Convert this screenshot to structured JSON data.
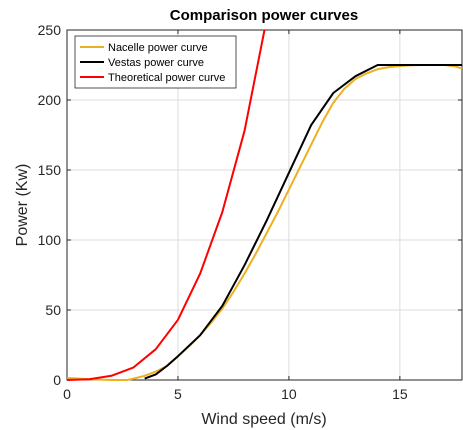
{
  "chart_data": {
    "type": "line",
    "title": "Comparison power curves",
    "xlabel": "Wind speed (m/s)",
    "ylabel": "Power (Kw)",
    "xlim": [
      0,
      17.8
    ],
    "ylim": [
      0,
      250
    ],
    "xticks": [
      0,
      5,
      10,
      15
    ],
    "yticks": [
      0,
      50,
      100,
      150,
      200,
      250
    ],
    "grid": true,
    "legend_position": "top-left",
    "series": [
      {
        "name": "Nacelle power curve",
        "color": "#EDB120",
        "points": [
          [
            0,
            1.5
          ],
          [
            1,
            0.5
          ],
          [
            2,
            0
          ],
          [
            2.7,
            0
          ],
          [
            3,
            1
          ],
          [
            3.5,
            3
          ],
          [
            4,
            6
          ],
          [
            4.5,
            10
          ],
          [
            5,
            17
          ],
          [
            5.5,
            24
          ],
          [
            6,
            32
          ],
          [
            6.5,
            41
          ],
          [
            7,
            51
          ],
          [
            7.5,
            63
          ],
          [
            8,
            76
          ],
          [
            8.5,
            90
          ],
          [
            9,
            105
          ],
          [
            9.5,
            120
          ],
          [
            10,
            136
          ],
          [
            10.5,
            152
          ],
          [
            11,
            168
          ],
          [
            11.5,
            184
          ],
          [
            12,
            198
          ],
          [
            12.5,
            208
          ],
          [
            13,
            215
          ],
          [
            13.5,
            219
          ],
          [
            14,
            222
          ],
          [
            14.5,
            223.5
          ],
          [
            15,
            224.3
          ],
          [
            15.5,
            224.8
          ],
          [
            16,
            225
          ],
          [
            16.5,
            225
          ],
          [
            17,
            225
          ],
          [
            17.5,
            224
          ],
          [
            17.8,
            222.5
          ]
        ]
      },
      {
        "name": "Vestas power curve",
        "color": "#000000",
        "points": [
          [
            3.5,
            1
          ],
          [
            4,
            4
          ],
          [
            4.5,
            10
          ],
          [
            5,
            17
          ],
          [
            6,
            32
          ],
          [
            7,
            53
          ],
          [
            8,
            82
          ],
          [
            9,
            114
          ],
          [
            10,
            148
          ],
          [
            11,
            182
          ],
          [
            12,
            205
          ],
          [
            13,
            217
          ],
          [
            14,
            225
          ],
          [
            15,
            225
          ],
          [
            16,
            225
          ],
          [
            17,
            225
          ],
          [
            17.8,
            225
          ]
        ]
      },
      {
        "name": "Theoretical power curve",
        "color": "#FF0000",
        "points": [
          [
            0,
            0
          ],
          [
            1,
            0.5
          ],
          [
            2,
            3
          ],
          [
            3,
            9
          ],
          [
            4,
            22
          ],
          [
            5,
            43
          ],
          [
            6,
            76
          ],
          [
            7,
            120
          ],
          [
            8,
            178
          ],
          [
            8.9,
            250
          ]
        ]
      }
    ]
  }
}
